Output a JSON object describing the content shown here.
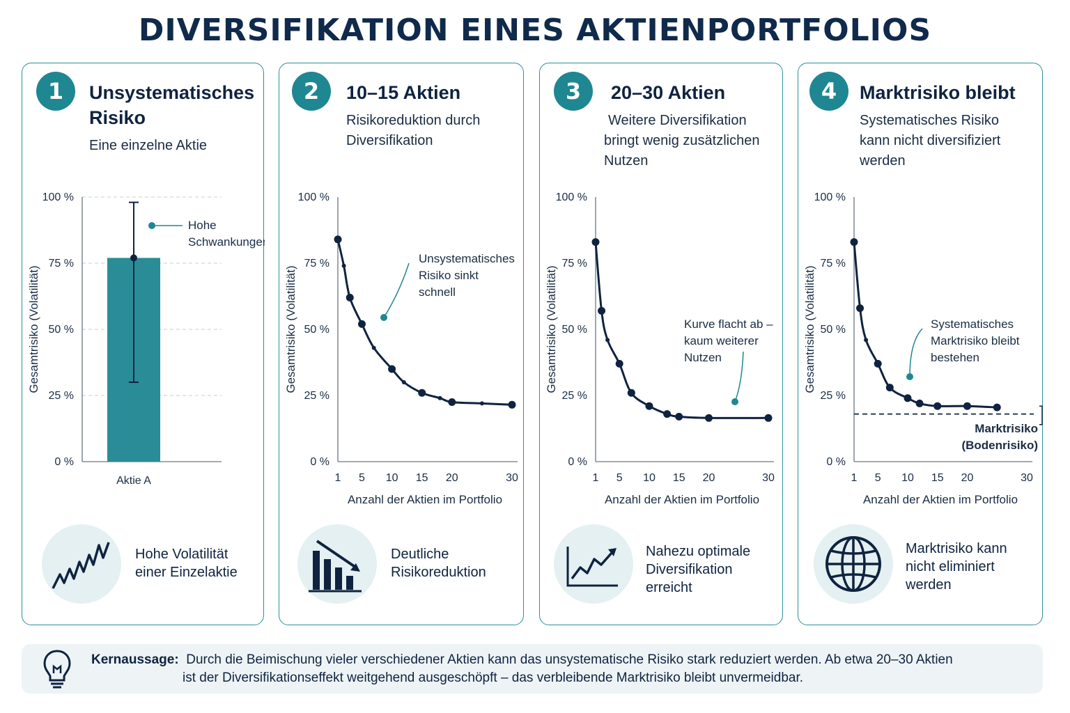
{
  "title": "DIVERSIFIKATION EINES AKTIENPORTFOLIOS",
  "panels": [
    {
      "number": "1",
      "heading_lines": [
        "Unsystematisches",
        "Risiko"
      ],
      "subtitle_lines": [
        "Eine einzelne Aktie"
      ],
      "footer_lines": [
        "Hohe Volatilität",
        "einer Einzelaktie"
      ],
      "icon": "zigzag-volatility-icon"
    },
    {
      "number": "2",
      "heading_lines": [
        "10–15 Aktien"
      ],
      "subtitle_lines": [
        "Risikoreduktion durch",
        "Diversifikation"
      ],
      "footer_lines": [
        "Deutliche",
        "Risikoreduktion"
      ],
      "icon": "declining-bars-icon"
    },
    {
      "number": "3",
      "heading_lines": [
        "20–30 Aktien"
      ],
      "subtitle_lines": [
        "Weitere Diversifikation",
        "bringt wenig zusätzlichen",
        "Nutzen"
      ],
      "footer_lines": [
        "Nahezu optimale",
        "Diversifikation",
        "erreicht"
      ],
      "icon": "rising-line-chart-icon"
    },
    {
      "number": "4",
      "heading_lines": [
        "Marktrisiko bleibt"
      ],
      "subtitle_lines": [
        "Systematisches Risiko",
        "kann nicht diversifiziert",
        "werden"
      ],
      "footer_lines": [
        "Marktrisiko kann",
        "nicht eliminiert",
        "werden"
      ],
      "icon": "globe-icon"
    }
  ],
  "chart_data": [
    {
      "type": "bar",
      "categories": [
        "Aktie A"
      ],
      "values": [
        77
      ],
      "error_range": [
        30,
        98
      ],
      "ylabel": "Gesamtrisiko (Volatilität)",
      "ylim": [
        0,
        100
      ],
      "yticks": [
        "0 %",
        "25 %",
        "50 %",
        "75 %",
        "100 %"
      ],
      "grid": "dashed at y ticks",
      "color": "#2a8c97",
      "annotations": [
        {
          "lines": [
            "Hohe",
            "Schwankungen"
          ]
        }
      ]
    },
    {
      "type": "line",
      "x": [
        1,
        2,
        3,
        5,
        7,
        10,
        12,
        15,
        18,
        20,
        25,
        30
      ],
      "y": [
        84,
        74,
        62,
        52,
        43,
        35,
        30,
        26,
        24,
        22.5,
        22,
        21.5
      ],
      "markers_large": [
        1,
        3,
        5,
        10,
        15,
        20,
        30
      ],
      "xlabel": "Anzahl der Aktien im Portfolio",
      "ylabel": "Gesamtrisiko (Volatilität)",
      "ylim": [
        0,
        100
      ],
      "xticks": [
        "1",
        "5",
        "10",
        "15",
        "20",
        "30"
      ],
      "yticks": [
        "0 %",
        "25 %",
        "50 %",
        "75 %",
        "100 %"
      ],
      "annotations": [
        {
          "lines": [
            "Unsystematisches",
            "Risiko sinkt",
            "schnell"
          ]
        }
      ]
    },
    {
      "type": "line",
      "x": [
        1,
        2,
        3,
        5,
        7,
        10,
        13,
        15,
        20,
        30
      ],
      "y": [
        83,
        57,
        46,
        37,
        26,
        21,
        18,
        17,
        16.5,
        16.5
      ],
      "markers_large": [
        1,
        2,
        5,
        7,
        10,
        13,
        15,
        20,
        30
      ],
      "xlabel": "Anzahl der Aktien im Portfolio",
      "ylabel": "Gesamtrisiko (Volatilität)",
      "ylim": [
        0,
        100
      ],
      "xticks": [
        "1",
        "5",
        "10",
        "15",
        "20",
        "30"
      ],
      "yticks": [
        "0 %",
        "25 %",
        "50 %",
        "75 %",
        "100 %"
      ],
      "annotations": [
        {
          "lines": [
            "Kurve flacht ab –",
            "kaum weiterer",
            "Nutzen"
          ]
        }
      ]
    },
    {
      "type": "line",
      "x": [
        1,
        2,
        3,
        5,
        7,
        10,
        12,
        15,
        20,
        25
      ],
      "y": [
        83,
        58,
        46,
        37,
        28,
        24,
        22,
        21,
        21,
        20.5
      ],
      "markers_large": [
        1,
        2,
        5,
        7,
        10,
        12,
        15,
        20,
        25
      ],
      "baseline": 18,
      "baseline_label_lines": [
        "Marktrisiko",
        "(Bodenrisiko)"
      ],
      "xlabel": "Anzahl der Aktien im Portfolio",
      "ylabel": "Gesamtrisiko (Volatilität)",
      "ylim": [
        0,
        100
      ],
      "xticks": [
        "1",
        "5",
        "10",
        "15",
        "20",
        "30"
      ],
      "yticks": [
        "0 %",
        "25 %",
        "50 %",
        "75 %",
        "100 %"
      ],
      "annotations": [
        {
          "lines": [
            "Systematisches",
            "Marktrisiko bleibt",
            "bestehen"
          ]
        }
      ]
    }
  ],
  "key_message": {
    "label": "Kernaussage:",
    "line1": "Durch die Beimischung vieler verschiedener Aktien kann das unsystematische Risiko stark reduziert werden. Ab etwa 20–30 Aktien",
    "line2": "ist der Diversifikationseffekt weitgehend ausgeschöpft – das verbleibende Marktrisiko bleibt unvermeidbar."
  },
  "colors": {
    "teal": "#1e8791",
    "navy": "#0f2340",
    "card_border": "#2e8f9a",
    "light_teal": "#e4f0f1"
  }
}
